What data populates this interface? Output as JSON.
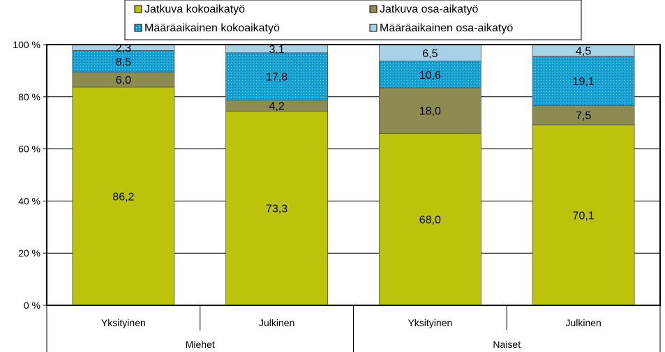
{
  "chart_data": {
    "type": "bar",
    "stacked": true,
    "percent_stacked": true,
    "groups": [
      {
        "label": "Miehet",
        "categories": [
          "Yksityinen",
          "Julkinen"
        ]
      },
      {
        "label": "Naiset",
        "categories": [
          "Yksityinen",
          "Julkinen"
        ]
      }
    ],
    "categories": [
      "Yksityinen",
      "Julkinen",
      "Yksityinen",
      "Julkinen"
    ],
    "series": [
      {
        "name": "Jatkuva kokoaikatyö",
        "values": [
          86.2,
          73.3,
          68.0,
          70.1
        ],
        "labels": [
          "86,2",
          "73,3",
          "68,0",
          "70,1"
        ],
        "color": "#bcc30a",
        "pattern": "solid"
      },
      {
        "name": "Jatkuva osa-aikatyö",
        "values": [
          6.0,
          4.2,
          18.0,
          7.5
        ],
        "labels": [
          "6,0",
          "4,2",
          "18,0",
          "7,5"
        ],
        "color": "#8c8c52",
        "pattern": "solid"
      },
      {
        "name": "Määräaikainen kokoaikatyö",
        "values": [
          8.5,
          17.8,
          10.6,
          19.1
        ],
        "labels": [
          "8,5",
          "17,8",
          "10,6",
          "19,1"
        ],
        "color": "#1ba2d4",
        "pattern": "dotted"
      },
      {
        "name": "Määräaikainen osa-aikatyö",
        "values": [
          2.3,
          3.1,
          6.5,
          4.5
        ],
        "labels": [
          "2,3",
          "3,1",
          "6,5",
          "4,5"
        ],
        "color": "#a8d2e6",
        "pattern": "solid"
      }
    ],
    "yticks": [
      "0 %",
      "20 %",
      "40 %",
      "60 %",
      "80 %",
      "100 %"
    ],
    "ylim": [
      0,
      100
    ],
    "grid": true,
    "legend": "top",
    "title": "",
    "xlabel": "",
    "ylabel": ""
  }
}
